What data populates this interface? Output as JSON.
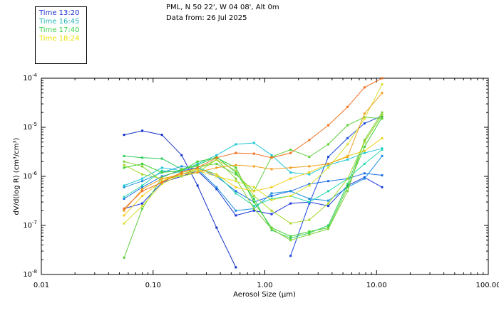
{
  "header": {
    "title": "PML, N 50 22', W 04 08', Alt 0m",
    "date": "Data from: 26 Jul 2025"
  },
  "legend": [
    {
      "label": "Time 13:20",
      "color": "#1a2fd0"
    },
    {
      "label": "Time 16:45",
      "color": "#22b5b5"
    },
    {
      "label": "Time 17:40",
      "color": "#3bd24a"
    },
    {
      "label": "Time 18:24",
      "color": "#e8e000"
    }
  ],
  "chart_data": {
    "type": "line",
    "title": "",
    "xlabel": "Aerosol Size (μm)",
    "ylabel": "dV/d(log R) (cm³/cm³)",
    "xscale": "log",
    "yscale": "log",
    "xlim": [
      0.01,
      100
    ],
    "ylim": [
      1e-08,
      0.0001
    ],
    "grid": false,
    "x_tick_labels": [
      "0.01",
      "0.10",
      "1.00",
      "10.00",
      "100.00"
    ],
    "x_tick_values": [
      0.01,
      0.1,
      1,
      10,
      100
    ],
    "y_tick_values": [
      1e-08,
      1e-07,
      1e-06,
      1e-05,
      0.0001
    ],
    "y_tick_labels": [
      {
        "m": "10",
        "e": "-8"
      },
      {
        "m": "10",
        "e": "-7"
      },
      {
        "m": "10",
        "e": "-6"
      },
      {
        "m": "10",
        "e": "-5"
      },
      {
        "m": "10",
        "e": "-4"
      }
    ],
    "series": [
      {
        "name": "series-01",
        "color": "#1030c8",
        "x": [
          0.055,
          0.08,
          0.12,
          0.18,
          0.25,
          0.37,
          0.55
        ],
        "y": [
          7e-06,
          8.5e-06,
          7e-06,
          2.7e-06,
          6.5e-07,
          9e-08,
          1.4e-08
        ]
      },
      {
        "name": "series-02",
        "color": "#1a38d8",
        "x": [
          0.055,
          0.08,
          0.12,
          0.18,
          0.25,
          0.37,
          0.55,
          0.8,
          1.15,
          1.7,
          2.5,
          3.7,
          5.5,
          7.8,
          11.2
        ],
        "y": [
          2.2e-07,
          2.8e-07,
          7.5e-07,
          1e-06,
          1.3e-06,
          5.5e-07,
          1.6e-07,
          2e-07,
          1.7e-07,
          2.8e-07,
          3e-07,
          2.5e-07,
          6.5e-07,
          9.5e-07,
          6e-07
        ]
      },
      {
        "name": "series-03",
        "color": "#1848e0",
        "x": [
          1.7,
          2.5,
          3.7,
          5.5,
          7.8,
          11.2
        ],
        "y": [
          2.4e-08,
          2.8e-07,
          2.5e-06,
          6e-06,
          1.2e-05,
          1.7e-05
        ]
      },
      {
        "name": "series-04",
        "color": "#2070e8",
        "x": [
          0.055,
          0.08,
          0.12,
          0.18,
          0.25,
          0.37,
          0.55,
          0.8,
          1.15,
          1.7,
          2.5,
          3.7,
          5.5,
          7.8,
          11.2
        ],
        "y": [
          3.5e-07,
          6e-07,
          1e-06,
          1.3e-06,
          1.5e-06,
          1e-06,
          5e-07,
          3e-07,
          4e-07,
          5e-07,
          7e-07,
          8e-07,
          9e-07,
          1.15e-06,
          1.05e-06
        ]
      },
      {
        "name": "series-05",
        "color": "#1a90e0",
        "x": [
          0.055,
          0.08,
          0.12,
          0.18,
          0.25,
          0.37,
          0.55,
          0.8,
          1.15,
          1.7,
          2.5,
          3.7,
          5.5,
          7.8,
          11.2
        ],
        "y": [
          6e-07,
          8e-07,
          1.2e-06,
          1.6e-06,
          1.4e-06,
          6e-07,
          2e-07,
          2.2e-07,
          4.5e-07,
          5e-07,
          3.5e-07,
          3.2e-07,
          6e-07,
          9e-07,
          2.6e-06
        ]
      },
      {
        "name": "series-06",
        "color": "#20c8d8",
        "x": [
          0.055,
          0.08,
          0.12,
          0.18,
          0.25,
          0.37,
          0.55,
          0.8,
          1.15,
          1.7,
          2.5,
          3.7,
          5.5,
          7.8,
          11.2
        ],
        "y": [
          6.5e-07,
          9e-07,
          1.5e-06,
          1.3e-06,
          1.8e-06,
          2.7e-06,
          4.5e-06,
          4.8e-06,
          2.7e-06,
          1.2e-06,
          1.1e-06,
          1.7e-06,
          2.2e-06,
          3e-06,
          3.7e-06
        ]
      },
      {
        "name": "series-07",
        "color": "#28d8b0",
        "x": [
          0.055,
          0.08,
          0.12,
          0.18,
          0.25,
          0.37,
          0.55,
          0.8,
          1.15,
          1.7,
          2.5,
          3.7,
          5.5,
          7.8,
          11.2
        ],
        "y": [
          3.8e-07,
          6.5e-07,
          1.3e-06,
          1.2e-06,
          1.5e-06,
          1.1e-06,
          4.5e-07,
          2.5e-07,
          3.5e-07,
          4e-07,
          3e-07,
          5e-07,
          9e-07,
          1.8e-06,
          3.5e-06
        ]
      },
      {
        "name": "series-08",
        "color": "#30d060",
        "x": [
          0.055,
          0.08,
          0.12,
          0.18,
          0.25,
          0.37,
          0.55,
          0.8,
          1.15,
          1.7,
          2.5,
          3.7,
          5.5,
          7.8,
          11.2
        ],
        "y": [
          2.6e-06,
          2.4e-06,
          2.3e-06,
          1.4e-06,
          1.7e-06,
          2.5e-06,
          1.2e-06,
          3.5e-07,
          8e-08,
          5.5e-08,
          7e-08,
          1e-07,
          7e-07,
          5e-06,
          1.8e-05
        ]
      },
      {
        "name": "series-09",
        "color": "#40d030",
        "x": [
          0.055,
          0.08,
          0.12,
          0.18,
          0.25,
          0.37,
          0.55,
          0.8,
          1.15,
          1.7,
          2.5,
          3.7,
          5.5,
          7.8,
          11.2
        ],
        "y": [
          1.5e-06,
          1.8e-06,
          1.2e-06,
          1.3e-06,
          2e-06,
          2.4e-06,
          1.5e-06,
          3e-07,
          9e-08,
          6e-08,
          7.5e-08,
          9e-08,
          6e-07,
          4e-06,
          1.6e-05
        ]
      },
      {
        "name": "series-10",
        "color": "#60d040",
        "x": [
          0.055,
          0.08,
          0.12,
          0.18,
          0.25,
          0.37,
          0.55,
          0.8,
          1.15,
          1.7,
          2.5,
          3.7,
          5.5,
          7.8,
          11.2
        ],
        "y": [
          2.2e-08,
          2.2e-07,
          9.5e-07,
          1.4e-06,
          1.6e-06,
          1.8e-06,
          1.1e-06,
          5e-07,
          2.5e-06,
          3.5e-06,
          2.5e-06,
          4.5e-06,
          1.1e-05,
          1.6e-05,
          1.5e-05
        ]
      },
      {
        "name": "series-11",
        "color": "#80d038",
        "x": [
          0.055,
          0.08,
          0.12,
          0.18,
          0.25,
          0.37,
          0.55,
          0.8,
          1.15,
          1.7,
          2.5,
          3.7,
          5.5,
          7.8,
          11.2
        ],
        "y": [
          2e-06,
          1.6e-06,
          8e-07,
          1.1e-06,
          1.4e-06,
          2.2e-06,
          9e-07,
          2.2e-07,
          8.5e-08,
          5e-08,
          6.5e-08,
          8.5e-08,
          5e-07,
          5.5e-06,
          2e-05
        ]
      },
      {
        "name": "series-12",
        "color": "#a8d830",
        "x": [
          0.055,
          0.08,
          0.12,
          0.18,
          0.25,
          0.37,
          0.55,
          0.8,
          1.15,
          1.7,
          2.5,
          3.7,
          5.5,
          7.8,
          11.2
        ],
        "y": [
          1.7e-06,
          1.1e-06,
          9e-07,
          1e-06,
          1.2e-06,
          2.2e-06,
          1.3e-06,
          4e-07,
          2e-07,
          1.1e-07,
          1.3e-07,
          2.8e-07,
          9e-07,
          5e-06,
          1.8e-05
        ]
      },
      {
        "name": "series-13",
        "color": "#d8e030",
        "x": [
          0.055,
          0.08,
          0.12,
          0.18,
          0.25,
          0.37,
          0.55,
          0.8,
          1.15,
          1.7,
          2.5,
          3.7,
          5.5,
          7.8,
          11.2
        ],
        "y": [
          1.1e-07,
          2.5e-07,
          7e-07,
          1.1e-06,
          1.3e-06,
          1e-06,
          8e-07,
          6e-07,
          3.3e-07,
          4e-07,
          6.5e-07,
          1.5e-06,
          4.5e-06,
          1.5e-05,
          7.5e-05
        ]
      },
      {
        "name": "series-14",
        "color": "#f0d020",
        "x": [
          0.055,
          0.08,
          0.12,
          0.18,
          0.25,
          0.37,
          0.55,
          0.8,
          1.15,
          1.7,
          2.5,
          3.7,
          5.5,
          7.8,
          11.2
        ],
        "y": [
          1.6e-07,
          4e-07,
          8e-07,
          1.2e-06,
          1.4e-06,
          1.1e-06,
          6e-07,
          5e-07,
          6e-07,
          9e-07,
          1.2e-06,
          1.8e-06,
          2.6e-06,
          3.3e-06,
          6e-06
        ]
      },
      {
        "name": "series-15",
        "color": "#f0a020",
        "x": [
          0.055,
          0.08,
          0.12,
          0.18,
          0.25,
          0.37,
          0.55,
          0.8,
          1.15,
          1.7,
          2.5,
          3.7,
          5.5,
          7.8,
          11.2
        ],
        "y": [
          2e-07,
          5.5e-07,
          9e-07,
          1.1e-06,
          1.2e-06,
          1.5e-06,
          1.7e-06,
          1.6e-06,
          1.4e-06,
          1.5e-06,
          1.6e-06,
          1.8e-06,
          2.5e-06,
          1.9e-05,
          5e-05
        ]
      },
      {
        "name": "series-16",
        "color": "#f07020",
        "x": [
          0.055,
          0.08,
          0.12,
          0.18,
          0.25,
          0.37,
          0.55,
          0.8,
          1.15,
          1.7,
          2.5,
          3.7,
          5.5,
          7.8,
          11.2
        ],
        "y": [
          2.2e-07,
          5e-07,
          7.5e-07,
          1.2e-06,
          1.5e-06,
          2.4e-06,
          3e-06,
          2.9e-06,
          2.4e-06,
          3e-06,
          5.5e-06,
          1.1e-05,
          2.6e-05,
          6.5e-05,
          0.0001
        ]
      }
    ]
  }
}
